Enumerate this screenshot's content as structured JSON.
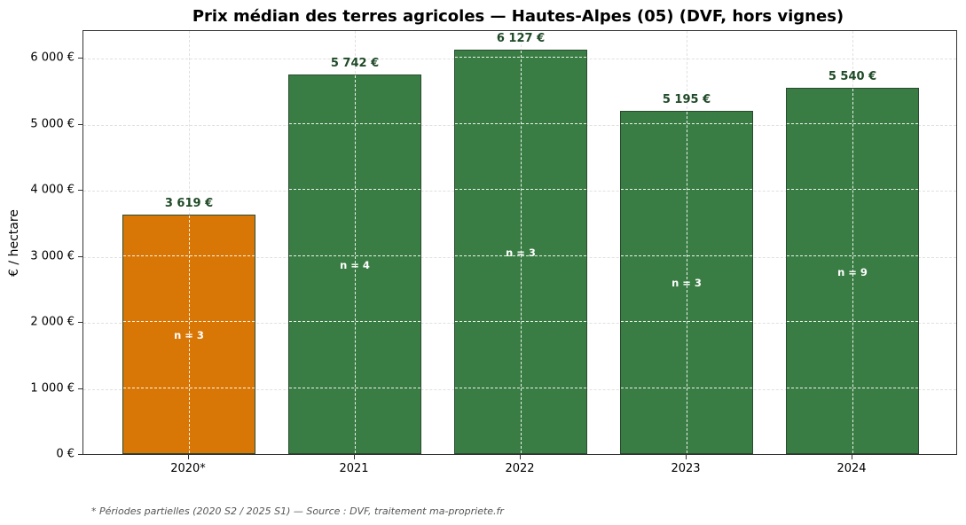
{
  "chart_data": {
    "type": "bar",
    "title": "Prix médian des terres agricoles — Hautes-Alpes (05) (DVF, hors vignes)",
    "xlabel": "",
    "ylabel": "€ / hectare",
    "categories": [
      "2020*",
      "2021",
      "2022",
      "2023",
      "2024"
    ],
    "values": [
      3619,
      5742,
      6127,
      5195,
      5540
    ],
    "value_labels": [
      "3 619 €",
      "5 742 €",
      "6 127 €",
      "5 195 €",
      "5 540 €"
    ],
    "counts": [
      3,
      4,
      3,
      3,
      9
    ],
    "count_labels": [
      "n = 3",
      "n = 4",
      "n = 3",
      "n = 3",
      "n = 9"
    ],
    "bar_colors": [
      "#d97706",
      "#3a7d44",
      "#3a7d44",
      "#3a7d44",
      "#3a7d44"
    ],
    "edge_color": "#2a4a30",
    "ylim": [
      0,
      6430
    ],
    "yticks": [
      0,
      1000,
      2000,
      3000,
      4000,
      5000,
      6000
    ],
    "ytick_labels": [
      "0 €",
      "1 000 €",
      "2 000 €",
      "3 000 €",
      "4 000 €",
      "5 000 €",
      "6 000 €"
    ],
    "grid": true,
    "legend": null,
    "footnote": "* Périodes partielles (2020 S2 / 2025 S1) — Source : DVF, traitement ma-propriete.fr"
  }
}
